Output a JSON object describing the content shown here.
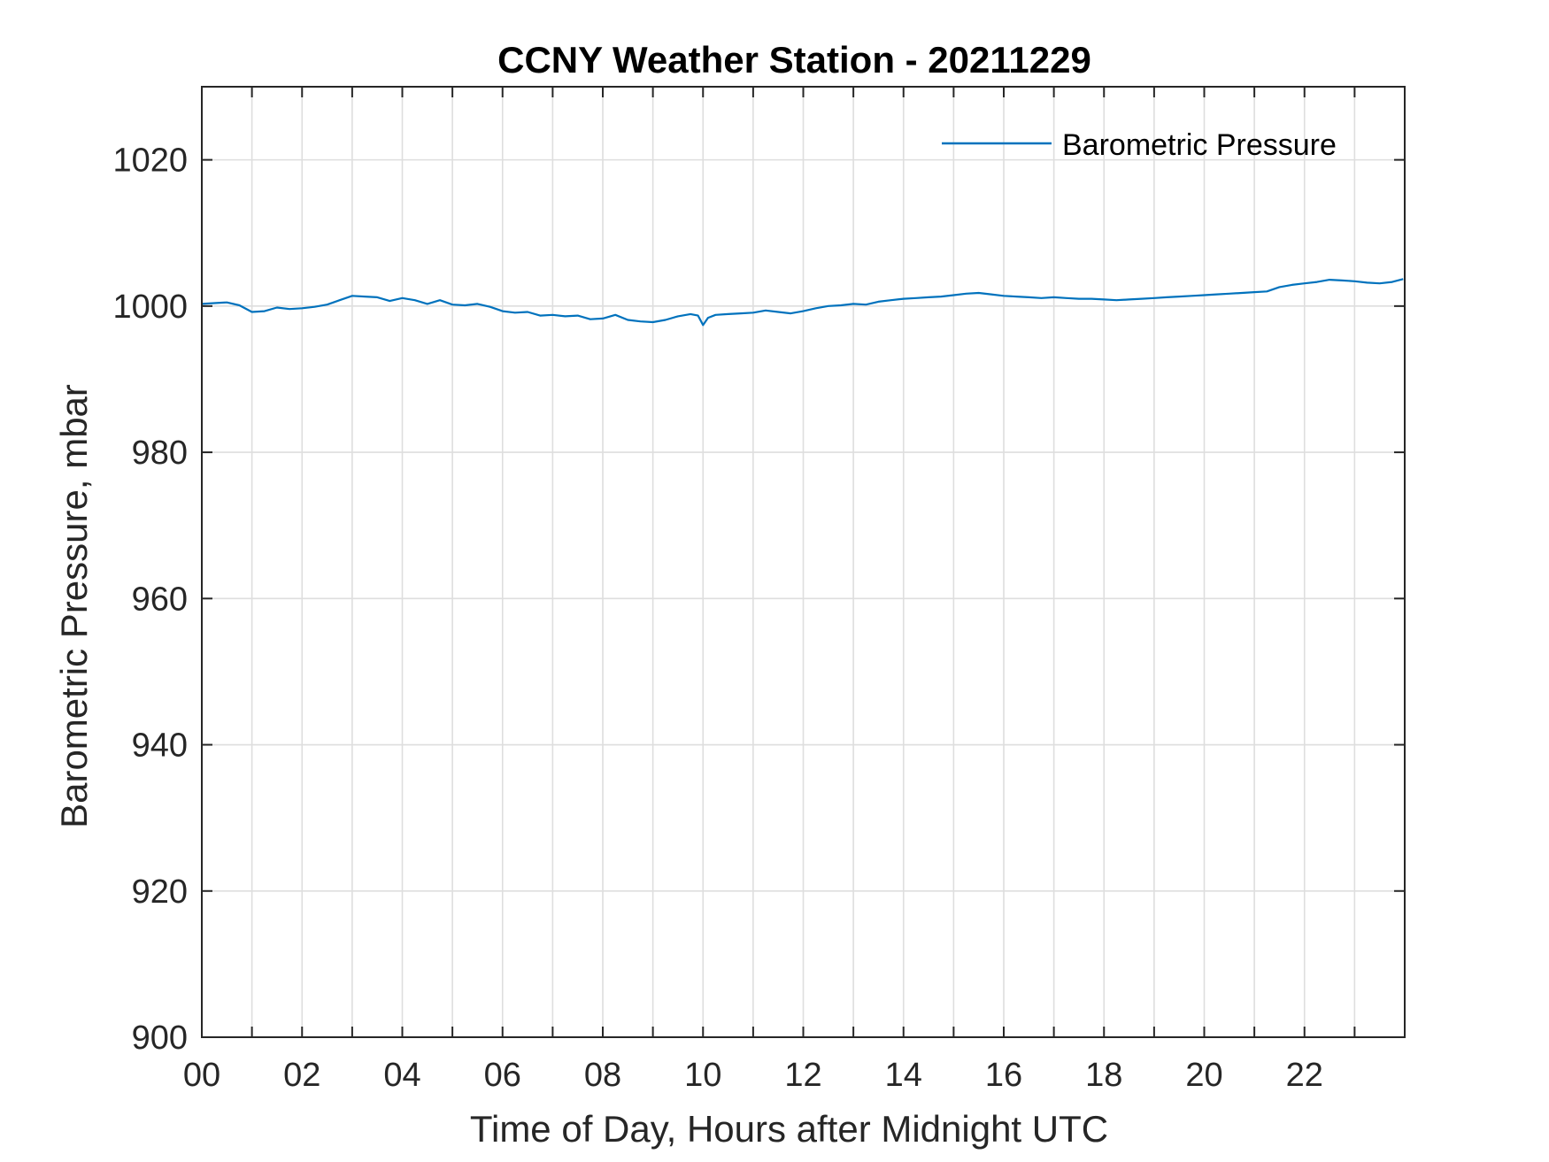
{
  "chart_data": {
    "type": "line",
    "title": "CCNY Weather Station - 20211229",
    "xlabel": "Time of Day, Hours after Midnight UTC",
    "ylabel": "Barometric Pressure, mbar",
    "xlim": [
      0,
      24
    ],
    "ylim": [
      900,
      1030
    ],
    "x_tick_values": [
      0,
      2,
      4,
      6,
      8,
      10,
      12,
      14,
      16,
      18,
      20,
      22
    ],
    "x_tick_labels": [
      "00",
      "02",
      "04",
      "06",
      "08",
      "10",
      "12",
      "14",
      "16",
      "18",
      "20",
      "22"
    ],
    "x_minor_ticks": [
      1,
      3,
      5,
      7,
      9,
      11,
      13,
      15,
      17,
      19,
      21,
      23
    ],
    "y_ticks": [
      900,
      920,
      940,
      960,
      980,
      1000,
      1020
    ],
    "grid": true,
    "legend_position": "top-right",
    "colors": {
      "series": "#0072BD",
      "axes": "#262626",
      "grid": "#dedede"
    },
    "series": [
      {
        "name": "Barometric Pressure",
        "x": [
          0,
          0.25,
          0.5,
          0.75,
          1.0,
          1.25,
          1.5,
          1.75,
          2.0,
          2.25,
          2.5,
          2.75,
          3.0,
          3.25,
          3.5,
          3.75,
          4.0,
          4.25,
          4.5,
          4.75,
          5.0,
          5.25,
          5.5,
          5.75,
          6.0,
          6.25,
          6.5,
          6.75,
          7.0,
          7.25,
          7.5,
          7.75,
          8.0,
          8.25,
          8.5,
          8.75,
          9.0,
          9.25,
          9.5,
          9.75,
          9.9,
          10.0,
          10.1,
          10.25,
          10.5,
          10.75,
          11.0,
          11.25,
          11.5,
          11.75,
          12.0,
          12.25,
          12.5,
          12.75,
          13.0,
          13.25,
          13.5,
          13.75,
          14.0,
          14.25,
          14.5,
          14.75,
          15.0,
          15.25,
          15.5,
          15.75,
          16.0,
          16.25,
          16.5,
          16.75,
          17.0,
          17.25,
          17.5,
          17.75,
          18.0,
          18.25,
          18.5,
          18.75,
          19.0,
          19.25,
          19.5,
          19.75,
          20.0,
          20.25,
          20.5,
          20.75,
          21.0,
          21.25,
          21.5,
          21.75,
          22.0,
          22.25,
          22.5,
          22.75,
          23.0,
          23.25,
          23.5,
          23.75,
          23.97
        ],
        "y": [
          1000.3,
          1000.4,
          1000.5,
          1000.1,
          999.2,
          999.3,
          999.8,
          999.6,
          999.7,
          999.9,
          1000.2,
          1000.8,
          1001.4,
          1001.3,
          1001.2,
          1000.7,
          1001.1,
          1000.8,
          1000.3,
          1000.8,
          1000.2,
          1000.1,
          1000.3,
          999.9,
          999.3,
          999.1,
          999.2,
          998.7,
          998.8,
          998.6,
          998.7,
          998.2,
          998.3,
          998.8,
          998.1,
          997.9,
          997.8,
          998.1,
          998.6,
          998.9,
          998.7,
          997.4,
          998.4,
          998.8,
          998.9,
          999.0,
          999.1,
          999.4,
          999.2,
          999.0,
          999.3,
          999.7,
          1000.0,
          1000.1,
          1000.3,
          1000.2,
          1000.6,
          1000.8,
          1001.0,
          1001.1,
          1001.2,
          1001.3,
          1001.5,
          1001.7,
          1001.8,
          1001.6,
          1001.4,
          1001.3,
          1001.2,
          1001.1,
          1001.2,
          1001.1,
          1001.0,
          1001.0,
          1000.9,
          1000.8,
          1000.9,
          1001.0,
          1001.1,
          1001.2,
          1001.3,
          1001.4,
          1001.5,
          1001.6,
          1001.7,
          1001.8,
          1001.9,
          1002.0,
          1002.6,
          1002.9,
          1003.1,
          1003.3,
          1003.6,
          1003.5,
          1003.4,
          1003.2,
          1003.1,
          1003.3,
          1003.7
        ]
      }
    ]
  }
}
